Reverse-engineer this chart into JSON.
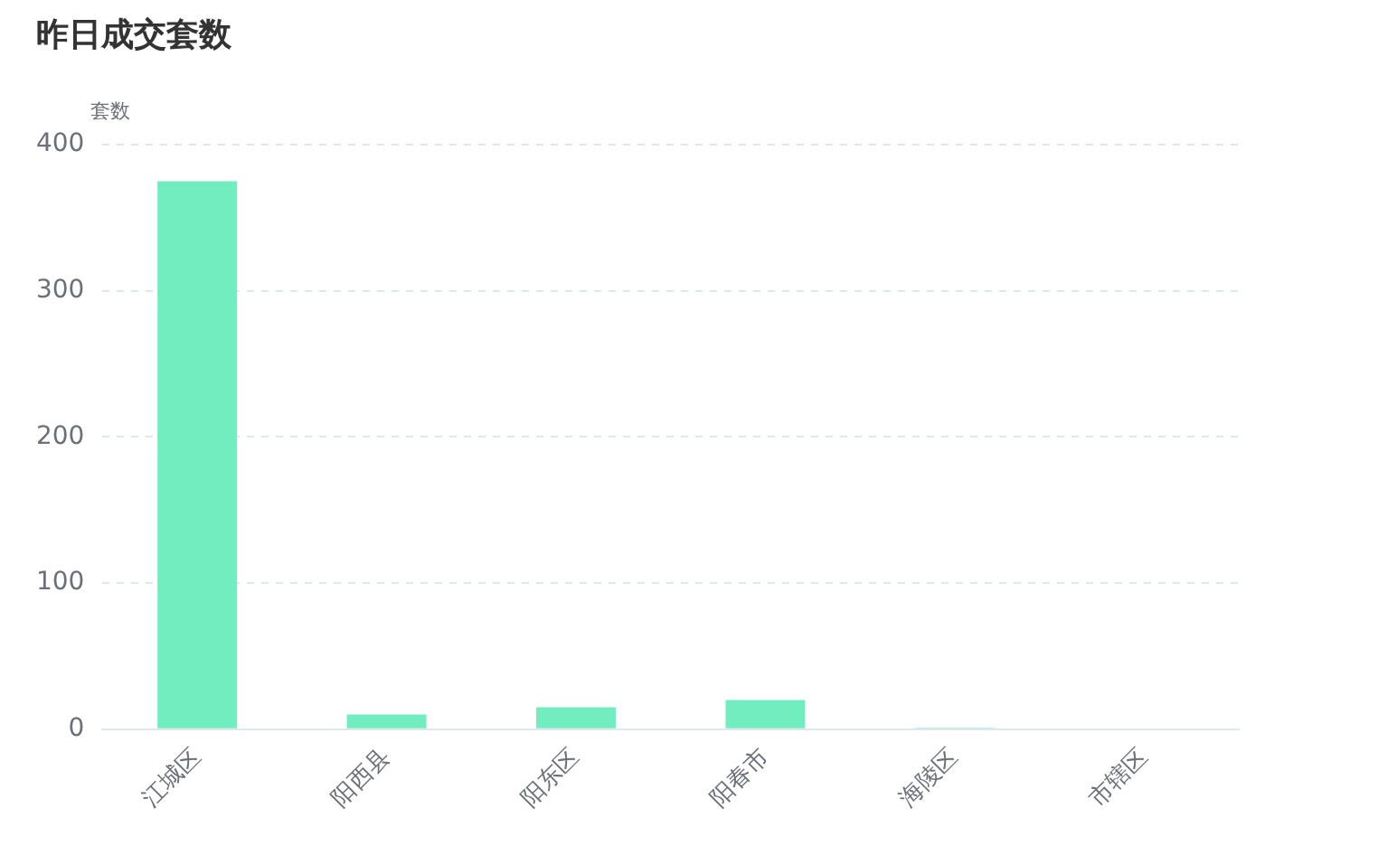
{
  "chart_data": {
    "type": "bar",
    "title": "昨日成交套数",
    "ylabel": "套数",
    "categories": [
      "江城区",
      "阳西县",
      "阳东区",
      "阳春市",
      "海陵区",
      "市辖区"
    ],
    "values": [
      375,
      10,
      15,
      20,
      1,
      0
    ],
    "color": "#72edc0",
    "ylim": [
      0,
      400
    ],
    "yticks": [
      0,
      100,
      200,
      300,
      400
    ],
    "grid": "y"
  }
}
